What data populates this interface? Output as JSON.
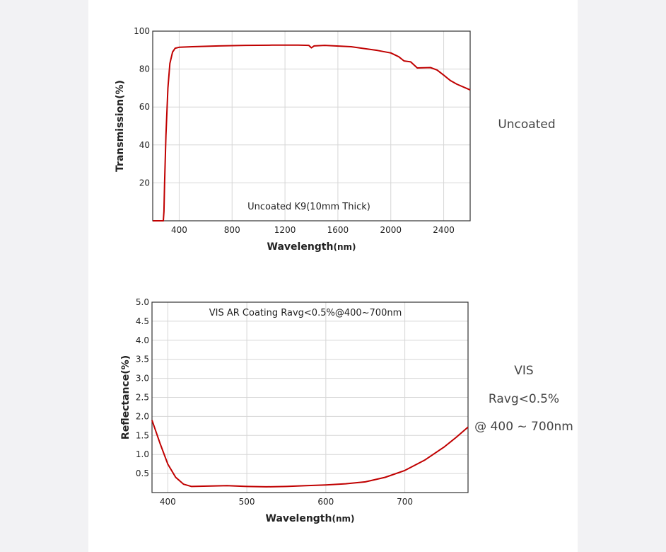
{
  "side_labels": {
    "top": "Uncoated",
    "bottom_line1": "VIS",
    "bottom_line2": "Ravg<0.5%",
    "bottom_line3": "@ 400 ~ 700nm"
  },
  "colors": {
    "curve": "#c00000",
    "grid": "#d6d6d6",
    "axis": "#333333",
    "text": "#222222"
  },
  "chart_data": [
    {
      "type": "line",
      "title": "",
      "annotation": "Uncoated K9(10mm Thick)",
      "xlabel": "Wavelength",
      "xlabel_unit": "(nm)",
      "ylabel": "Transmission(%)",
      "xlim": [
        200,
        2600
      ],
      "ylim": [
        0,
        100
      ],
      "xticks": [
        400,
        800,
        1200,
        1600,
        2000,
        2400
      ],
      "yticks": [
        20,
        40,
        60,
        80,
        100
      ],
      "grid": true,
      "series": [
        {
          "x": [
            200,
            280,
            285,
            290,
            300,
            315,
            330,
            350,
            370,
            400,
            500,
            700,
            900,
            1100,
            1300,
            1380,
            1400,
            1420,
            1500,
            1700,
            1900,
            2000,
            2060,
            2100,
            2150,
            2200,
            2250,
            2300,
            2350,
            2400,
            2450,
            2500,
            2600
          ],
          "y": [
            0,
            0,
            5,
            20,
            45,
            70,
            83,
            89,
            91,
            91.5,
            91.8,
            92.2,
            92.5,
            92.6,
            92.6,
            92.5,
            91.2,
            92.2,
            92.5,
            91.8,
            89.8,
            88.5,
            86.5,
            84.3,
            83.8,
            80.6,
            80.7,
            80.8,
            79.5,
            76.8,
            74,
            72,
            69
          ]
        }
      ]
    },
    {
      "type": "line",
      "title": "",
      "annotation": "VIS AR Coating Ravg<0.5%@400~700nm",
      "xlabel": "Wavelength",
      "xlabel_unit": "(nm)",
      "ylabel": "Reflectance(%)",
      "xlim": [
        380,
        780
      ],
      "ylim": [
        0,
        5.0
      ],
      "xticks": [
        400,
        500,
        600,
        700
      ],
      "yticks": [
        "0.5",
        "1.0",
        "1.5",
        "2.0",
        "2.5",
        "3.0",
        "3.5",
        "4.0",
        "4.5",
        "5.0"
      ],
      "grid": true,
      "series": [
        {
          "x": [
            380,
            390,
            400,
            410,
            420,
            430,
            450,
            475,
            500,
            525,
            550,
            575,
            600,
            625,
            650,
            675,
            700,
            725,
            750,
            765,
            780
          ],
          "y": [
            1.9,
            1.3,
            0.75,
            0.4,
            0.22,
            0.16,
            0.17,
            0.18,
            0.16,
            0.15,
            0.16,
            0.18,
            0.2,
            0.23,
            0.28,
            0.4,
            0.58,
            0.85,
            1.2,
            1.45,
            1.72
          ]
        }
      ]
    }
  ]
}
